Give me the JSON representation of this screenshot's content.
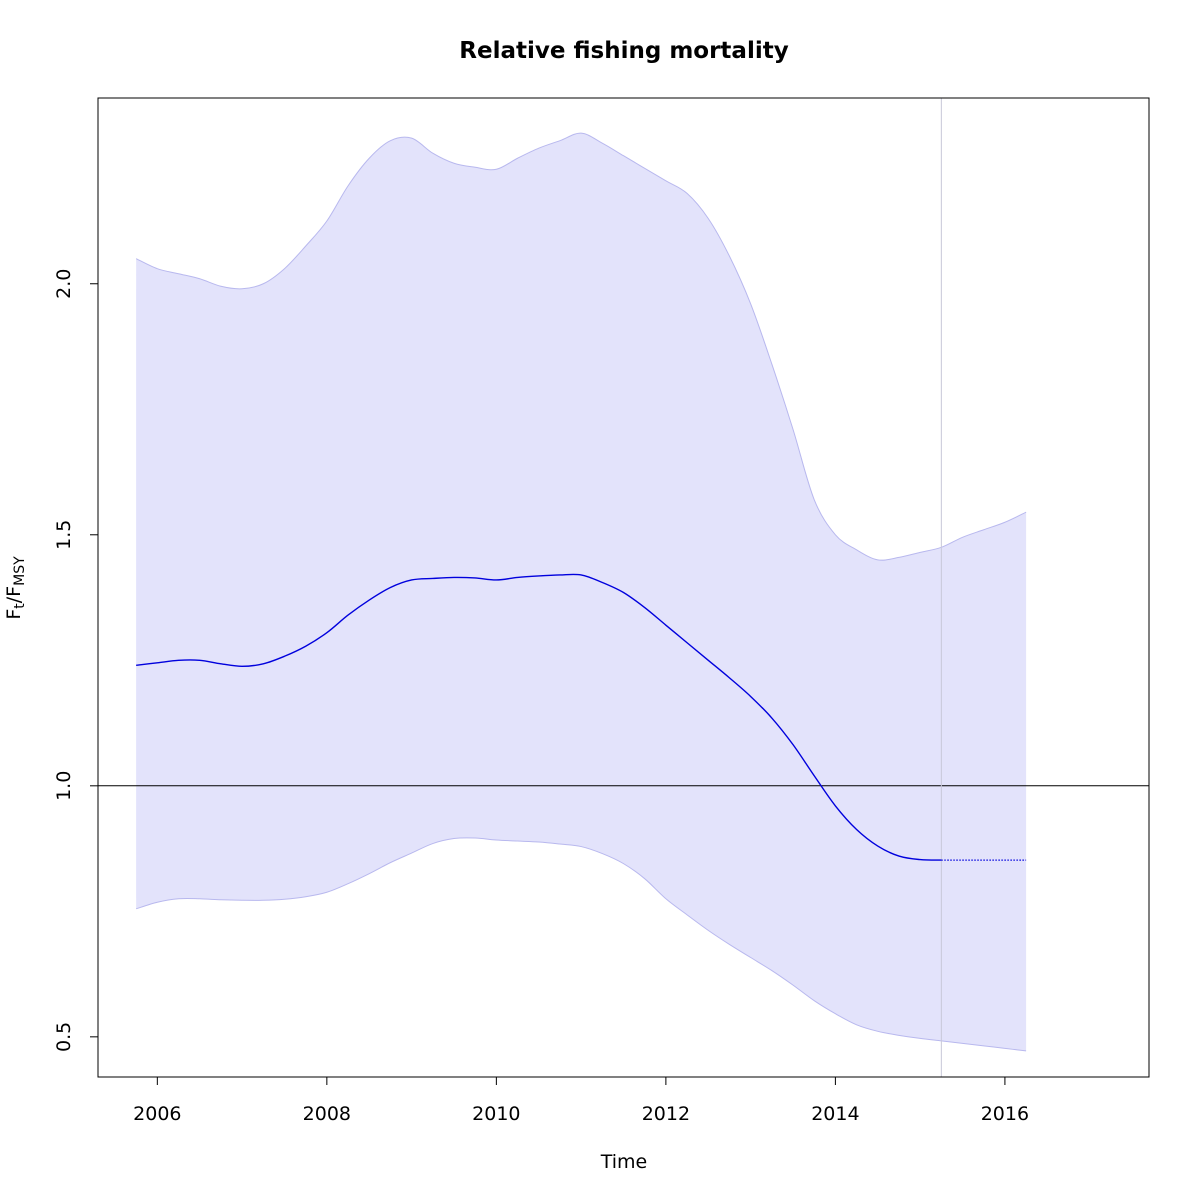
{
  "chart_data": {
    "type": "area",
    "title": "Relative fishing mortality",
    "xlabel": "Time",
    "ylabel": {
      "base": "F",
      "sub1": "t",
      "sep": "/F",
      "sub2": "MSY"
    },
    "xlim": [
      2005.3,
      2017.7
    ],
    "ylim": [
      0.42,
      2.37
    ],
    "x_ticks": [
      2006,
      2008,
      2010,
      2012,
      2014,
      2016
    ],
    "x_tick_labels": [
      "2006",
      "2008",
      "2010",
      "2012",
      "2014",
      "2016"
    ],
    "y_ticks": [
      0.5,
      1.0,
      1.5,
      2.0
    ],
    "y_tick_labels": [
      "0.5",
      "1.0",
      "1.5",
      "2.0"
    ],
    "reference_line_y": 1.0,
    "forecast_start_x": 2015.25,
    "colors": {
      "band_fill": "#e3e3fb",
      "band_edge": "#b8b8ee",
      "estimate_line": "#0000dd",
      "reference_line": "#000000",
      "forecast_marker": "#c8c8d8"
    },
    "series": [
      {
        "role": "estimate",
        "x": [
          2005.75,
          2006.0,
          2006.25,
          2006.5,
          2006.75,
          2007.0,
          2007.25,
          2007.5,
          2007.75,
          2008.0,
          2008.25,
          2008.5,
          2008.75,
          2009.0,
          2009.25,
          2009.5,
          2009.75,
          2010.0,
          2010.25,
          2010.5,
          2010.75,
          2011.0,
          2011.25,
          2011.5,
          2011.75,
          2012.0,
          2012.25,
          2012.5,
          2012.75,
          2013.0,
          2013.25,
          2013.5,
          2013.75,
          2014.0,
          2014.25,
          2014.5,
          2014.75,
          2015.0,
          2015.25
        ],
        "y": [
          1.24,
          1.245,
          1.25,
          1.25,
          1.243,
          1.238,
          1.243,
          1.258,
          1.278,
          1.305,
          1.34,
          1.37,
          1.395,
          1.41,
          1.413,
          1.415,
          1.414,
          1.41,
          1.415,
          1.418,
          1.42,
          1.42,
          1.405,
          1.385,
          1.355,
          1.32,
          1.285,
          1.25,
          1.215,
          1.178,
          1.135,
          1.082,
          1.02,
          0.96,
          0.913,
          0.88,
          0.86,
          0.853,
          0.852
        ]
      },
      {
        "role": "forecast",
        "x": [
          2015.25,
          2016.25
        ],
        "y": [
          0.852,
          0.852
        ]
      },
      {
        "role": "upper_bound",
        "x": [
          2005.75,
          2006.0,
          2006.25,
          2006.5,
          2006.75,
          2007.0,
          2007.25,
          2007.5,
          2007.75,
          2008.0,
          2008.25,
          2008.5,
          2008.75,
          2009.0,
          2009.25,
          2009.5,
          2009.75,
          2010.0,
          2010.25,
          2010.5,
          2010.75,
          2011.0,
          2011.25,
          2011.5,
          2011.75,
          2012.0,
          2012.25,
          2012.5,
          2012.75,
          2013.0,
          2013.25,
          2013.5,
          2013.75,
          2014.0,
          2014.25,
          2014.5,
          2014.75,
          2015.0,
          2015.25,
          2015.5,
          2015.75,
          2016.0,
          2016.25
        ],
        "y": [
          2.05,
          2.03,
          2.02,
          2.01,
          1.995,
          1.99,
          2.0,
          2.03,
          2.075,
          2.125,
          2.195,
          2.25,
          2.285,
          2.29,
          2.26,
          2.24,
          2.232,
          2.228,
          2.25,
          2.27,
          2.285,
          2.3,
          2.28,
          2.255,
          2.23,
          2.205,
          2.18,
          2.13,
          2.055,
          1.96,
          1.84,
          1.71,
          1.57,
          1.5,
          1.47,
          1.45,
          1.455,
          1.465,
          1.475,
          1.495,
          1.51,
          1.525,
          1.545
        ]
      },
      {
        "role": "lower_bound",
        "x": [
          2005.75,
          2006.0,
          2006.25,
          2006.5,
          2006.75,
          2007.0,
          2007.25,
          2007.5,
          2007.75,
          2008.0,
          2008.25,
          2008.5,
          2008.75,
          2009.0,
          2009.25,
          2009.5,
          2009.75,
          2010.0,
          2010.25,
          2010.5,
          2010.75,
          2011.0,
          2011.25,
          2011.5,
          2011.75,
          2012.0,
          2012.25,
          2012.5,
          2012.75,
          2013.0,
          2013.25,
          2013.5,
          2013.75,
          2014.0,
          2014.25,
          2014.5,
          2014.75,
          2015.0,
          2015.25,
          2015.5,
          2015.75,
          2016.0,
          2016.25
        ],
        "y": [
          0.755,
          0.768,
          0.775,
          0.775,
          0.773,
          0.772,
          0.772,
          0.774,
          0.779,
          0.788,
          0.805,
          0.825,
          0.847,
          0.866,
          0.885,
          0.895,
          0.896,
          0.892,
          0.89,
          0.888,
          0.884,
          0.879,
          0.865,
          0.845,
          0.815,
          0.775,
          0.743,
          0.712,
          0.684,
          0.658,
          0.632,
          0.603,
          0.572,
          0.546,
          0.524,
          0.511,
          0.503,
          0.497,
          0.492,
          0.487,
          0.482,
          0.477,
          0.472
        ]
      }
    ]
  }
}
